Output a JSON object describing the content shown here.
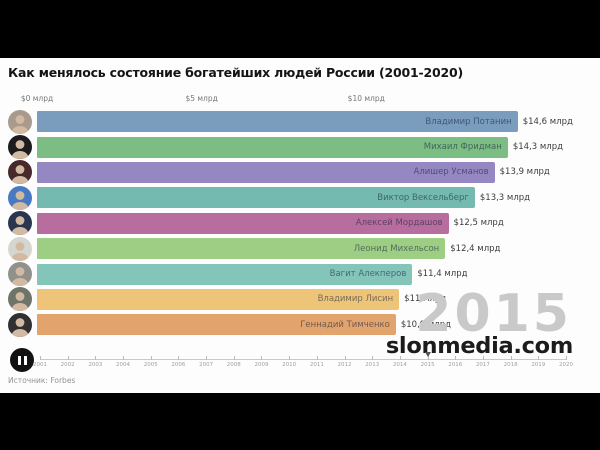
{
  "chart_data": {
    "type": "bar",
    "orientation": "horizontal",
    "title": "Как менялось состояние богатейших людей России (2001-2020)",
    "unit": "$ млрд",
    "year": 2015,
    "year_label": "2015",
    "xlim": [
      0,
      17.1
    ],
    "x_ticks": [
      {
        "value": 0,
        "label": "$0 млрд"
      },
      {
        "value": 5,
        "label": "$5 млрд"
      },
      {
        "value": 10,
        "label": "$10 млрд"
      }
    ],
    "bars": [
      {
        "rank": 1,
        "name": "Владимир Потанин",
        "value": 14.6,
        "label": "$14,6 млрд",
        "color": "#7a9dbd",
        "avatar_bg": "#a89a8c"
      },
      {
        "rank": 2,
        "name": "Михаил Фридман",
        "value": 14.3,
        "label": "$14,3 млрд",
        "color": "#7bbd83",
        "avatar_bg": "#1c1c1e"
      },
      {
        "rank": 3,
        "name": "Алишер Усманов",
        "value": 13.9,
        "label": "$13,9 млрд",
        "color": "#9587c1",
        "avatar_bg": "#47282b"
      },
      {
        "rank": 4,
        "name": "Виктор Вексельберг",
        "value": 13.3,
        "label": "$13,3 млрд",
        "color": "#74bab0",
        "avatar_bg": "#4a79c4"
      },
      {
        "rank": 5,
        "name": "Алексей Мордашов",
        "value": 12.5,
        "label": "$12,5 млрд",
        "color": "#b76d9e",
        "avatar_bg": "#2a3550"
      },
      {
        "rank": 6,
        "name": "Леонид Михельсон",
        "value": 12.4,
        "label": "$12,4 млрд",
        "color": "#9ecd84",
        "avatar_bg": "#d6d6d0"
      },
      {
        "rank": 7,
        "name": "Вагит Алекперов",
        "value": 11.4,
        "label": "$11,4 млрд",
        "color": "#83c5b9",
        "avatar_bg": "#90908c"
      },
      {
        "rank": 8,
        "name": "Владимир Лисин",
        "value": 11.0,
        "label": "$11 млрд",
        "color": "#eec578",
        "avatar_bg": "#6f7468"
      },
      {
        "rank": 9,
        "name": "Геннадий Тимченко",
        "value": 10.9,
        "label": "$10,9 млрд",
        "color": "#e2a36c",
        "avatar_bg": "#303032"
      }
    ],
    "timeline": {
      "years": [
        2001,
        2002,
        2003,
        2004,
        2005,
        2006,
        2007,
        2008,
        2009,
        2010,
        2011,
        2012,
        2013,
        2014,
        2015,
        2016,
        2017,
        2018,
        2019,
        2020
      ],
      "current_year": 2015
    },
    "source": "Источник: Forbes"
  },
  "watermark": {
    "text": "slonmedia.com",
    "year_color": "#c9c9c9",
    "text_color": "#1b1b1b"
  }
}
